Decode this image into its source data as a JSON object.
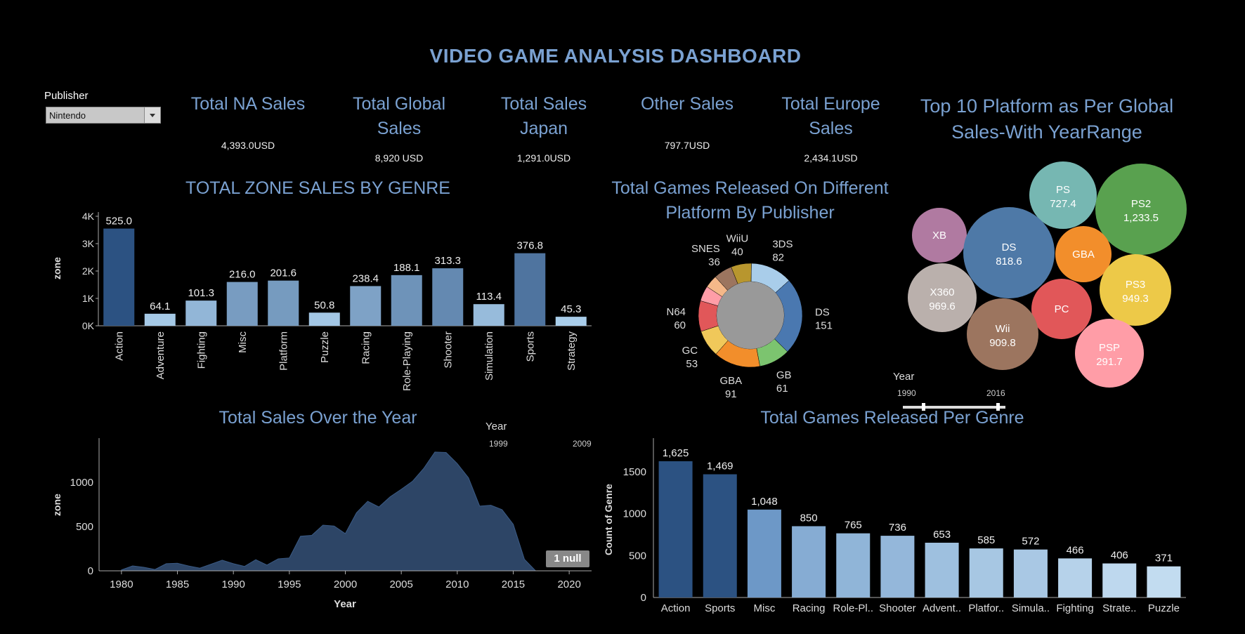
{
  "dashboard_title": "VIDEO GAME ANALYSIS DASHBOARD",
  "publisher": {
    "label": "Publisher",
    "value": "Nintendo"
  },
  "kpis": [
    {
      "title": "Total NA Sales",
      "value": "4,393.0USD"
    },
    {
      "title": "Total Global Sales",
      "value": "8,920 USD"
    },
    {
      "title": "Total Sales Japan",
      "value": "1,291.0USD"
    },
    {
      "title": "Other Sales",
      "value": "797.7USD"
    },
    {
      "title": "Total Europe Sales",
      "value": "2,434.1USD"
    }
  ],
  "bubble_title": "Top 10 Platform as Per Global Sales-With YearRange",
  "zone_title": "TOTAL  ZONE SALES BY GENRE",
  "donut_title": "Total Games Released On Different Platform By Publisher",
  "area_title": "Total Sales Over the Year",
  "genre_count_title": "Total Games Released Per Genre",
  "bubble_year_filter": {
    "label": "Year",
    "start": "1990",
    "end": "2016"
  },
  "area_year_filter": {
    "label": "Year",
    "start": "1999",
    "end": "2009"
  },
  "null_badge": "1 null",
  "colors": {
    "dark": "#2c5282",
    "mid": "#6b97c6",
    "light": "#a9cdea",
    "title": "#7aa1d1"
  },
  "chart_data": [
    {
      "type": "bar",
      "id": "zone_sales",
      "categories": [
        "Action",
        "Adventure",
        "Fighting",
        "Misc",
        "Platform",
        "Puzzle",
        "Racing",
        "Role-Playing",
        "Shooter",
        "Simulation",
        "Sports",
        "Strategy"
      ],
      "values": [
        3550,
        440,
        920,
        1600,
        1650,
        480,
        1450,
        1850,
        2100,
        790,
        2650,
        330
      ],
      "data_labels": [
        "525.0",
        "64.1",
        "101.3",
        "216.0",
        "201.6",
        "50.8",
        "238.4",
        "188.1",
        "313.3",
        "113.4",
        "376.8",
        "45.3"
      ],
      "ylabel": "zone",
      "yticks": [
        "0K",
        "1K",
        "2K",
        "3K",
        "4K"
      ],
      "ylim": [
        0,
        4000
      ]
    },
    {
      "type": "pie",
      "id": "platform_donut",
      "slices": [
        {
          "label": "3DS",
          "value": 82,
          "color": "#a9cdea",
          "show": true
        },
        {
          "label": "DS",
          "value": 151,
          "color": "#4a78b0",
          "show": true
        },
        {
          "label": "GB",
          "value": 61,
          "color": "#7cc46f",
          "show": true
        },
        {
          "label": "GBA",
          "value": 91,
          "color": "#f28e2b",
          "show": true
        },
        {
          "label": "GC",
          "value": 53,
          "color": "#f0c85a",
          "show": true
        },
        {
          "label": "N64",
          "value": 60,
          "color": "#e15759",
          "show": true
        },
        {
          "label": "",
          "value": 30,
          "color": "#ff9da7",
          "show": false
        },
        {
          "label": "",
          "value": 25,
          "color": "#f5b889",
          "show": false
        },
        {
          "label": "SNES",
          "value": 36,
          "color": "#9c755f",
          "show": true
        },
        {
          "label": "WiiU",
          "value": 40,
          "color": "#b8962e",
          "show": true
        }
      ]
    },
    {
      "type": "area",
      "id": "sales_over_year",
      "x": [
        1980,
        1981,
        1982,
        1983,
        1984,
        1985,
        1986,
        1987,
        1988,
        1989,
        1990,
        1991,
        1992,
        1993,
        1994,
        1995,
        1996,
        1997,
        1998,
        1999,
        2000,
        2001,
        2002,
        2003,
        2004,
        2005,
        2006,
        2007,
        2008,
        2009,
        2010,
        2011,
        2012,
        2013,
        2014,
        2015,
        2016,
        2017
      ],
      "y": [
        10,
        55,
        40,
        15,
        80,
        85,
        55,
        30,
        75,
        120,
        80,
        50,
        125,
        65,
        135,
        145,
        390,
        400,
        515,
        505,
        420,
        655,
        785,
        720,
        835,
        920,
        1010,
        1155,
        1340,
        1335,
        1210,
        1050,
        730,
        740,
        690,
        525,
        130,
        0
      ],
      "xlabel": "Year",
      "ylabel": "zone",
      "xticks": [
        1980,
        1985,
        1990,
        1995,
        2000,
        2005,
        2010,
        2015,
        2020
      ],
      "yticks": [
        0,
        500,
        1000
      ],
      "xlim": [
        1978,
        2022
      ],
      "ylim": [
        0,
        1450
      ]
    },
    {
      "type": "bar",
      "id": "games_per_genre",
      "categories": [
        "Action",
        "Sports",
        "Misc",
        "Racing",
        "Role-Pl..",
        "Shooter",
        "Advent..",
        "Platfor..",
        "Simula..",
        "Fighting",
        "Strate..",
        "Puzzle"
      ],
      "values": [
        1625,
        1469,
        1048,
        850,
        765,
        736,
        653,
        585,
        572,
        466,
        406,
        371
      ],
      "data_labels": [
        "1,625",
        "1,469",
        "1,048",
        "850",
        "765",
        "736",
        "653",
        "585",
        "572",
        "466",
        "406",
        "371"
      ],
      "ylabel": "Count of Genre",
      "yticks": [
        0,
        500,
        1000,
        1500
      ],
      "ylim": [
        0,
        1850
      ]
    },
    {
      "type": "bubble",
      "id": "top_platforms",
      "bubbles": [
        {
          "label": "PS",
          "value": "727.4",
          "color": "#76b7b2"
        },
        {
          "label": "PS2",
          "value": "1,233.5",
          "color": "#59a14f"
        },
        {
          "label": "XB",
          "value": "",
          "color": "#b07aa1"
        },
        {
          "label": "DS",
          "value": "818.6",
          "color": "#4e79a7"
        },
        {
          "label": "GBA",
          "value": "",
          "color": "#f28e2b"
        },
        {
          "label": "PS3",
          "value": "949.3",
          "color": "#edc948"
        },
        {
          "label": "X360",
          "value": "969.6",
          "color": "#bab0ac"
        },
        {
          "label": "PC",
          "value": "",
          "color": "#e15759"
        },
        {
          "label": "Wii",
          "value": "909.8",
          "color": "#9c755f"
        },
        {
          "label": "PSP",
          "value": "291.7",
          "color": "#ff9da7"
        }
      ]
    }
  ]
}
